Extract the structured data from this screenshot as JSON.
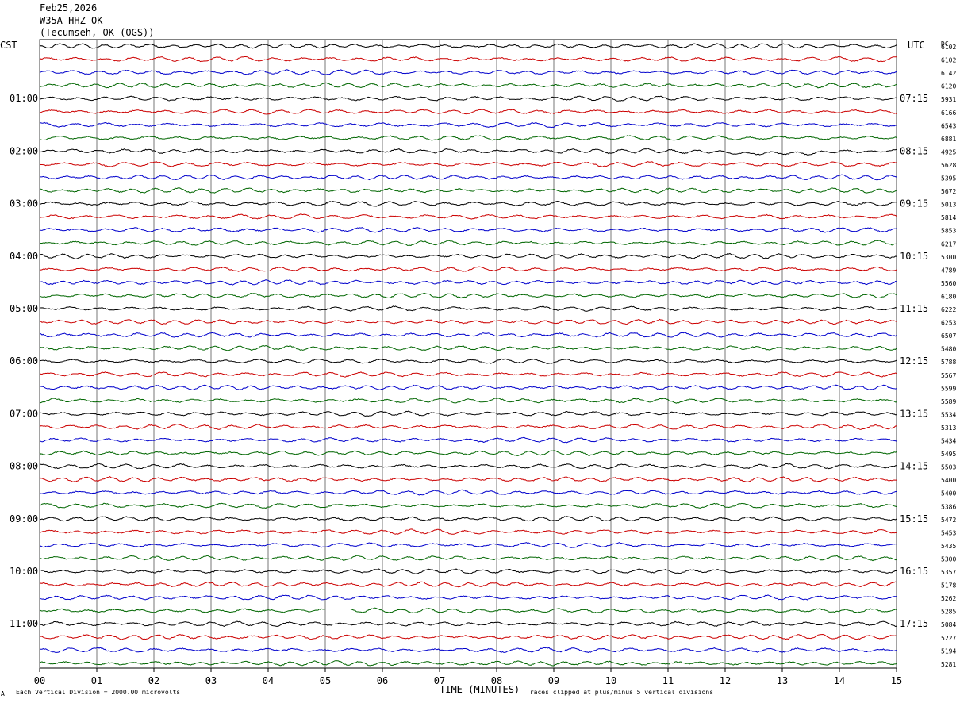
{
  "header": {
    "date": "Feb25,2026",
    "station": "W35A HHZ OK --",
    "location": "(Tecumseh, OK (OGS))"
  },
  "left_zone_label": "CST",
  "right_zone_label": "UTC",
  "dc_label": "DC",
  "footer": {
    "scale_note": "Each Vertical Division = 2000.00 microvolts",
    "clip_note": "Traces clipped at plus/minus 5 vertical divisions",
    "corner_mark": "A"
  },
  "colors": {
    "cycle": [
      "#000000",
      "#cc0000",
      "#0000cc",
      "#006600"
    ],
    "grid": "#555555"
  },
  "chart_data": {
    "type": "line",
    "xlabel": "TIME (MINUTES)",
    "xlim": [
      0,
      15
    ],
    "x_ticks": [
      "00",
      "01",
      "02",
      "03",
      "04",
      "05",
      "06",
      "07",
      "08",
      "09",
      "10",
      "11",
      "12",
      "13",
      "14",
      "15"
    ],
    "trace_count": 48,
    "left_hour_labels": [
      "01:00",
      "02:00",
      "03:00",
      "04:00",
      "05:00",
      "06:00",
      "07:00",
      "08:00",
      "09:00",
      "10:00",
      "11:00"
    ],
    "right_hour_labels": [
      "07:15",
      "08:15",
      "09:15",
      "10:15",
      "11:15",
      "12:15",
      "13:15",
      "14:15",
      "15:15",
      "16:15",
      "17:15"
    ],
    "dc_offsets": [
      6102,
      6102,
      6142,
      6120,
      5931,
      6166,
      6543,
      6881,
      4925,
      5628,
      5395,
      5672,
      5013,
      5814,
      5853,
      6217,
      5300,
      4789,
      5560,
      6180,
      6222,
      6253,
      6507,
      5480,
      5788,
      5567,
      5599,
      5589,
      5534,
      5313,
      5434,
      5495,
      5503,
      5400,
      5400,
      5386,
      5472,
      5453,
      5435,
      5300,
      5357,
      5178,
      5262,
      5285,
      5084,
      5227,
      5194,
      5281
    ]
  }
}
